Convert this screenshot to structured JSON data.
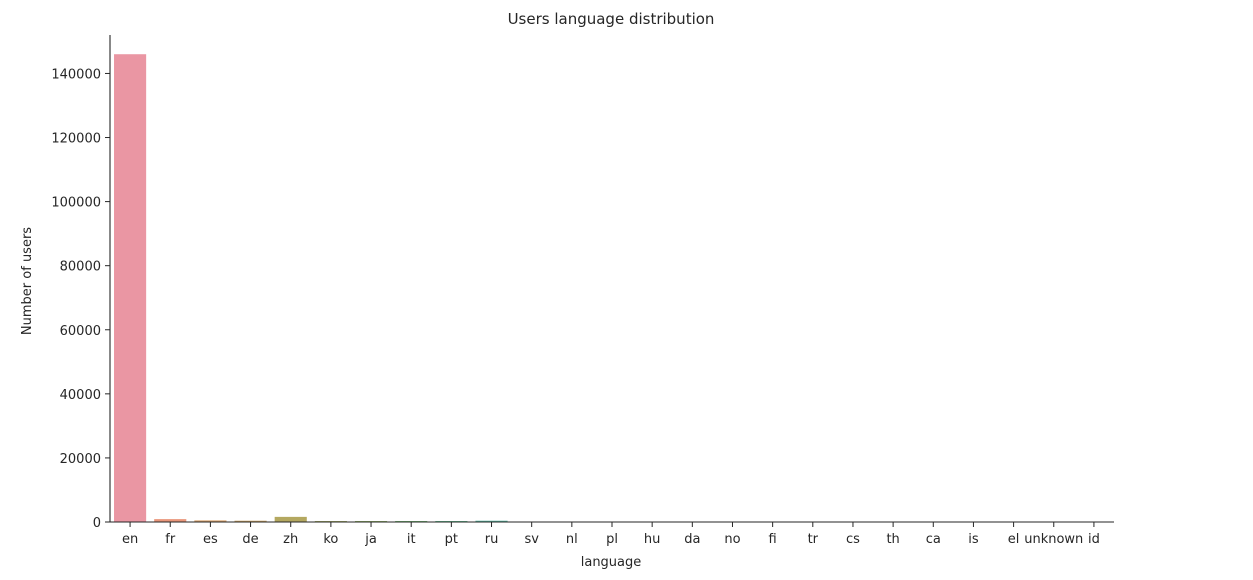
{
  "chart_data": {
    "type": "bar",
    "title": "Users language distribution",
    "xlabel": "language",
    "ylabel": "Number of users",
    "ylim": [
      0,
      152000
    ],
    "yticks": [
      0,
      20000,
      40000,
      60000,
      80000,
      100000,
      120000,
      140000
    ],
    "ytick_labels": [
      "0",
      "20000",
      "40000",
      "60000",
      "80000",
      "100000",
      "120000",
      "140000"
    ],
    "grid": false,
    "categories": [
      "en",
      "fr",
      "es",
      "de",
      "zh",
      "ko",
      "ja",
      "it",
      "pt",
      "ru",
      "sv",
      "nl",
      "pl",
      "hu",
      "da",
      "no",
      "fi",
      "tr",
      "cs",
      "th",
      "ca",
      "is",
      "el",
      "unknown",
      "id"
    ],
    "values": [
      146000,
      900,
      500,
      400,
      1600,
      300,
      300,
      300,
      300,
      400,
      50,
      40,
      40,
      20,
      20,
      20,
      20,
      20,
      20,
      10,
      10,
      10,
      10,
      10,
      10
    ],
    "colors": [
      "#ea96a3",
      "#e9967a",
      "#d8a068",
      "#c8a060",
      "#b4a860",
      "#a4ad60",
      "#8db260",
      "#6cb66a",
      "#59b88a",
      "#57b49d",
      "#59b0a8",
      "#5bacb2",
      "#5fa8bc",
      "#64a4c7",
      "#74a0d2",
      "#8e9ad7",
      "#a794da",
      "#bd8ed8",
      "#cf89d2",
      "#dd86c9",
      "#e589bd",
      "#e98db1",
      "#ea90a8",
      "#e993a5",
      "#ea96a3"
    ]
  }
}
